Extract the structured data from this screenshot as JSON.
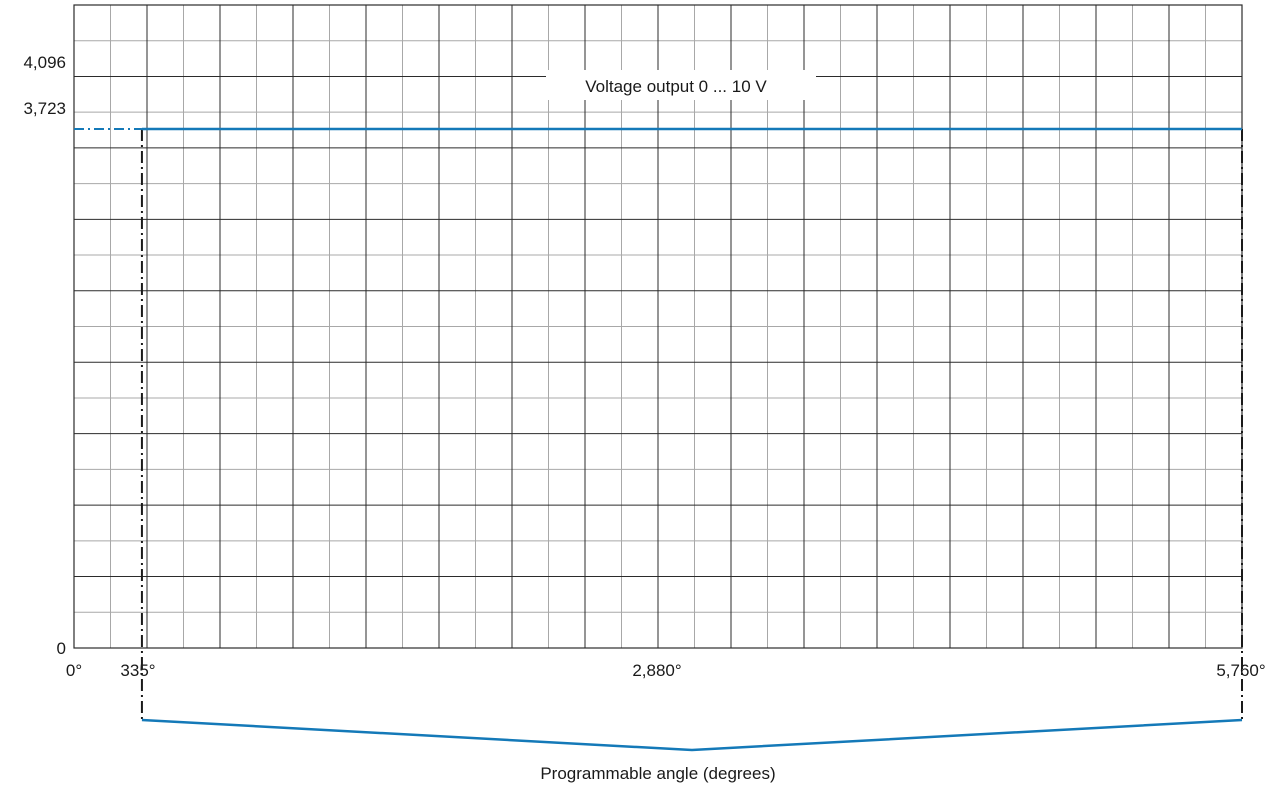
{
  "chart_data": {
    "type": "line",
    "series": [
      {
        "name": "Voltage output 0 ... 10 V",
        "x": [
          335,
          5760
        ],
        "y": [
          3723,
          3723
        ]
      }
    ],
    "xlim": [
      0,
      5760
    ],
    "ylim": [
      0,
      4096
    ],
    "x_tick_labels": [
      "0°",
      "335°",
      "2,880°",
      "5,760°"
    ],
    "y_tick_labels": [
      "0",
      "3,723",
      "4,096"
    ],
    "xlabel": "Programmable angle (degrees)",
    "ylabel": "",
    "title": "",
    "grid": true,
    "series_color": "#1479b8",
    "annotations": {
      "range_start": 335,
      "range_end": 5760
    }
  }
}
